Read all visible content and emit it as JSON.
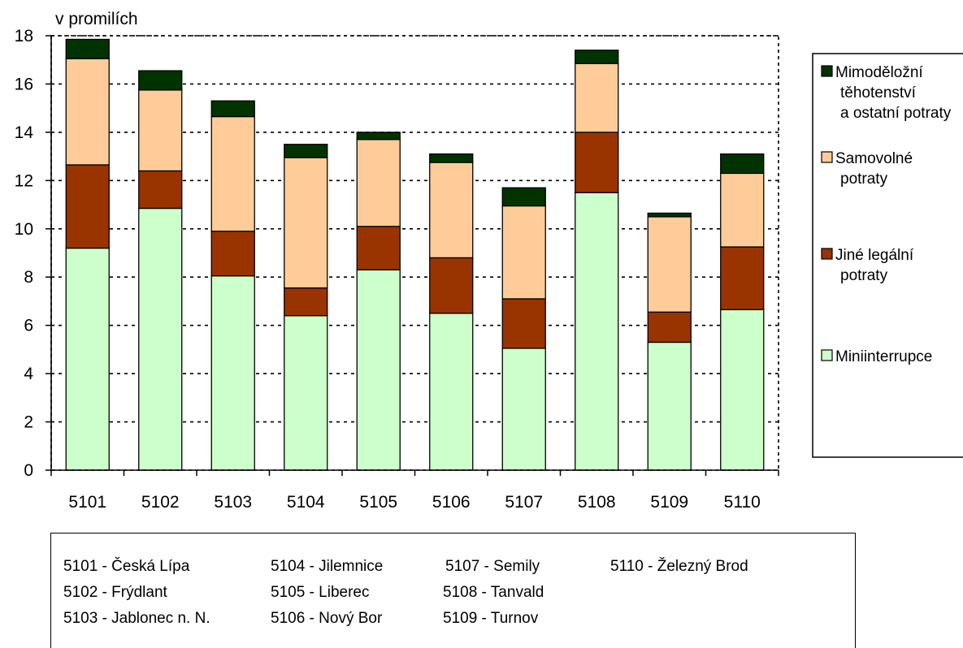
{
  "chart_data": {
    "type": "bar",
    "stacked": true,
    "title": "",
    "ylabel": "v promilích",
    "xlabel": "",
    "ylim": [
      0,
      18
    ],
    "yticks": [
      0,
      2,
      4,
      6,
      8,
      10,
      12,
      14,
      16,
      18
    ],
    "grid": "horizontal dashed",
    "legend_position": "right",
    "categories": [
      "5101",
      "5102",
      "5103",
      "5104",
      "5105",
      "5106",
      "5107",
      "5108",
      "5109",
      "5110"
    ],
    "series": [
      {
        "name": "Miniinterrupce",
        "color": "#ccffcc",
        "values": [
          9.2,
          10.85,
          8.05,
          6.4,
          8.3,
          6.5,
          5.05,
          11.5,
          5.3,
          6.65
        ]
      },
      {
        "name": "Jiné legální potraty",
        "color": "#993300",
        "values": [
          3.45,
          1.55,
          1.85,
          1.15,
          1.8,
          2.3,
          2.05,
          2.5,
          1.25,
          2.6
        ]
      },
      {
        "name": "Samovolné potraty",
        "color": "#ffcc99",
        "values": [
          4.4,
          3.35,
          4.75,
          5.4,
          3.6,
          3.95,
          3.85,
          2.85,
          3.95,
          3.05
        ]
      },
      {
        "name": "Mimoděložní těhotenství a ostatní potraty",
        "color": "#003300",
        "values": [
          0.8,
          0.8,
          0.65,
          0.55,
          0.3,
          0.35,
          0.75,
          0.55,
          0.15,
          0.8
        ]
      }
    ]
  },
  "legend": [
    {
      "lines": [
        "Mimoděložní",
        "těhotenství",
        "a ostatní potraty"
      ],
      "color": "#003300"
    },
    {
      "lines": [
        "Samovolné",
        "potraty"
      ],
      "color": "#ffcc99"
    },
    {
      "lines": [
        "Jiné legální",
        " potraty"
      ],
      "color": "#993300"
    },
    {
      "lines": [
        "Miniinterrupce"
      ],
      "color": "#ccffcc"
    }
  ],
  "district_key": [
    [
      "5101 - Česká Lípa",
      "5102 - Frýdlant",
      "5103 - Jablonec n. N."
    ],
    [
      "5104 - Jilemnice",
      "5105 - Liberec",
      "5106 - Nový Bor"
    ],
    [
      "5107 - Semily",
      "5108 - Tanvald",
      "5109 - Turnov"
    ],
    [
      "5110 - Železný Brod"
    ]
  ]
}
